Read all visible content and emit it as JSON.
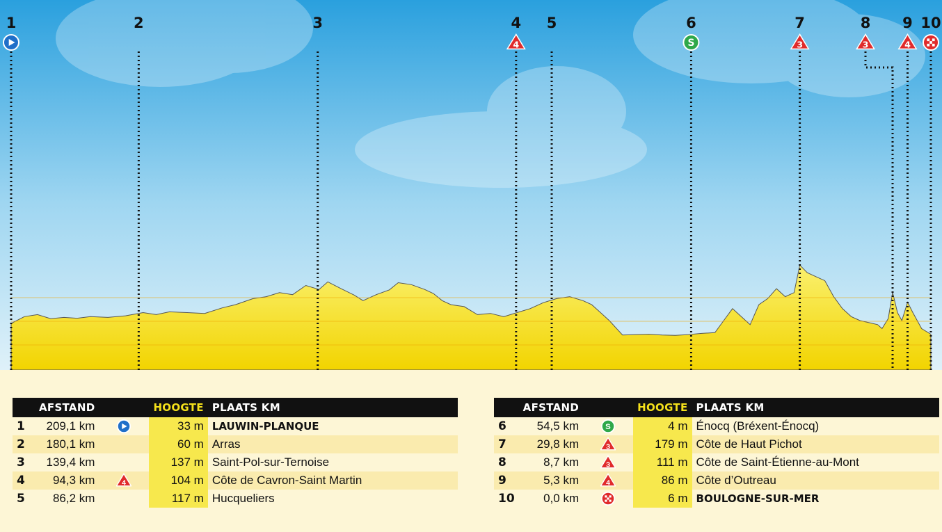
{
  "colors": {
    "sky_top": "#2aa0de",
    "sky_bottom": "#d7eef8",
    "terrain": "#f5e21c",
    "terrain_light": "#faf06e",
    "start": "#1f6fc9",
    "sprint": "#2ea84a",
    "climb": "#e02b2b",
    "finish": "#e02b2b",
    "header_bg": "#111111",
    "height_col": "#f7e84d"
  },
  "headers": {
    "afstand": "AFSTAND",
    "hoogte": "HOOGTE",
    "plaats": "PLAATS KM"
  },
  "chart_data": {
    "type": "area",
    "title": "",
    "xlabel": "",
    "ylabel": "",
    "x_unit": "km",
    "y_unit": "m",
    "total_km": 209.1,
    "ylim": [
      0,
      700
    ],
    "profile": [
      [
        0,
        33
      ],
      [
        3,
        50
      ],
      [
        6,
        55
      ],
      [
        9,
        45
      ],
      [
        12,
        48
      ],
      [
        15,
        46
      ],
      [
        18,
        50
      ],
      [
        22,
        48
      ],
      [
        26,
        52
      ],
      [
        30,
        60
      ],
      [
        33,
        55
      ],
      [
        36,
        62
      ],
      [
        40,
        60
      ],
      [
        44,
        58
      ],
      [
        48,
        72
      ],
      [
        51,
        80
      ],
      [
        55,
        95
      ],
      [
        58,
        100
      ],
      [
        61,
        110
      ],
      [
        64,
        105
      ],
      [
        67,
        128
      ],
      [
        70,
        118
      ],
      [
        72,
        137
      ],
      [
        75,
        120
      ],
      [
        78,
        104
      ],
      [
        80,
        90
      ],
      [
        83,
        105
      ],
      [
        86,
        117
      ],
      [
        88,
        135
      ],
      [
        91,
        130
      ],
      [
        94,
        118
      ],
      [
        96,
        108
      ],
      [
        98,
        90
      ],
      [
        100,
        80
      ],
      [
        103,
        75
      ],
      [
        106,
        55
      ],
      [
        109,
        58
      ],
      [
        112,
        50
      ],
      [
        115,
        60
      ],
      [
        118,
        70
      ],
      [
        121,
        85
      ],
      [
        124,
        95
      ],
      [
        127,
        100
      ],
      [
        130,
        90
      ],
      [
        132,
        80
      ],
      [
        134,
        60
      ],
      [
        136,
        40
      ],
      [
        139,
        4
      ],
      [
        142,
        5
      ],
      [
        145,
        6
      ],
      [
        148,
        4
      ],
      [
        151,
        3
      ],
      [
        154,
        5
      ],
      [
        157,
        8
      ],
      [
        160,
        10
      ],
      [
        162,
        40
      ],
      [
        164,
        70
      ],
      [
        166,
        50
      ],
      [
        168,
        30
      ],
      [
        170,
        80
      ],
      [
        172,
        95
      ],
      [
        174,
        120
      ],
      [
        176,
        100
      ],
      [
        178,
        110
      ],
      [
        179.3,
        179
      ],
      [
        181,
        160
      ],
      [
        183,
        150
      ],
      [
        185,
        140
      ],
      [
        187,
        100
      ],
      [
        189,
        70
      ],
      [
        191,
        50
      ],
      [
        193,
        40
      ],
      [
        195,
        35
      ],
      [
        197,
        30
      ],
      [
        198,
        20
      ],
      [
        199.4,
        45
      ],
      [
        200.4,
        111
      ],
      [
        201.5,
        60
      ],
      [
        202.5,
        40
      ],
      [
        203.8,
        86
      ],
      [
        205,
        60
      ],
      [
        207,
        20
      ],
      [
        209.1,
        6
      ]
    ],
    "points": [
      {
        "n": "1",
        "km_to_go": "209,1 km",
        "x_km": 0,
        "height": "33 m",
        "place": "LAUWIN-PLANQUE",
        "type": "start"
      },
      {
        "n": "2",
        "km_to_go": "180,1 km",
        "x_km": 29,
        "height": "60 m",
        "place": "Arras",
        "type": ""
      },
      {
        "n": "3",
        "km_to_go": "139,4 km",
        "x_km": 69.7,
        "height": "137 m",
        "place": "Saint-Pol-sur-Ternoise",
        "type": ""
      },
      {
        "n": "4",
        "km_to_go": "94,3 km",
        "x_km": 114.8,
        "height": "104 m",
        "place": "Côte de Cavron-Saint Martin",
        "type": "climb",
        "category": "4"
      },
      {
        "n": "5",
        "km_to_go": "86,2 km",
        "x_km": 122.9,
        "height": "117 m",
        "place": "Hucqueliers",
        "type": ""
      },
      {
        "n": "6",
        "km_to_go": "54,5 km",
        "x_km": 154.6,
        "height": "4 m",
        "place": "Énocq (Bréxent-Énocq)",
        "type": "sprint",
        "category": "S"
      },
      {
        "n": "7",
        "km_to_go": "29,8 km",
        "x_km": 179.3,
        "height": "179 m",
        "place": "Côte de Haut Pichot",
        "type": "climb",
        "category": "3"
      },
      {
        "n": "8",
        "km_to_go": "8,7 km",
        "x_km": 200.4,
        "height": "111 m",
        "place": "Côte de Saint-Étienne-au-Mont",
        "type": "climb",
        "category": "3"
      },
      {
        "n": "9",
        "km_to_go": "5,3 km",
        "x_km": 203.8,
        "height": "86 m",
        "place": "Côte d’Outreau",
        "type": "climb",
        "category": "4"
      },
      {
        "n": "10",
        "km_to_go": "0,0 km",
        "x_km": 209.1,
        "height": "6 m",
        "place": "BOULOGNE-SUR-MER",
        "type": "finish"
      }
    ]
  }
}
